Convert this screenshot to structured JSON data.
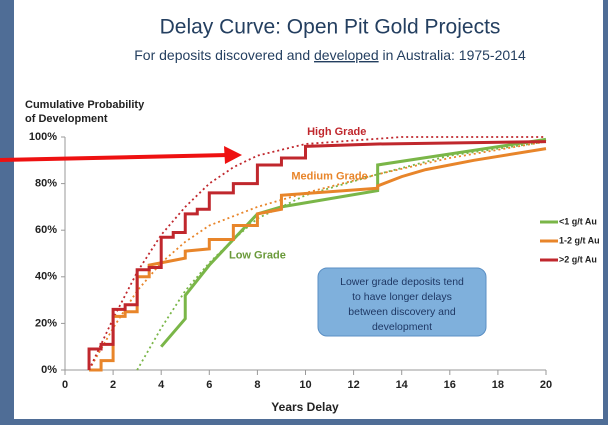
{
  "chart_data": {
    "type": "line",
    "title": "Delay Curve: Open Pit Gold Projects",
    "subtitle": {
      "before": "For deposits discovered and ",
      "underlined": "developed",
      "after": " in Australia: 1975-2014"
    },
    "y_label_lines": [
      "Cumulative Probability",
      "of Development"
    ],
    "x_label": "Years Delay",
    "xlim": [
      0,
      20
    ],
    "xticks": [
      0,
      2,
      4,
      6,
      8,
      10,
      12,
      14,
      16,
      18,
      20
    ],
    "ylim": [
      0,
      100
    ],
    "yticks": [
      {
        "value": 0,
        "label": "0%"
      },
      {
        "value": 20,
        "label": "20%"
      },
      {
        "value": 40,
        "label": "40%"
      },
      {
        "value": 60,
        "label": "60%"
      },
      {
        "value": 80,
        "label": "80%"
      },
      {
        "value": 100,
        "label": "100%"
      }
    ],
    "legend": "right",
    "series": [
      {
        "name": "<1 g/t Au",
        "color": "#7ab648",
        "x": [
          4,
          5,
          5,
          6,
          7,
          8,
          9,
          13,
          13,
          20
        ],
        "values": [
          10,
          22,
          32,
          45,
          56,
          67,
          70,
          77,
          88,
          99
        ]
      },
      {
        "name": "1-2 g/t Au",
        "color": "#e8852a",
        "x": [
          1,
          1.5,
          1.5,
          2,
          2,
          2.5,
          2.5,
          3,
          3,
          3.5,
          3.5,
          5,
          5,
          6,
          6,
          7,
          7,
          8,
          8,
          9,
          9,
          13,
          13,
          14,
          15,
          17,
          20
        ],
        "values": [
          0,
          0,
          4,
          4,
          23,
          23,
          25,
          25,
          40,
          40,
          45,
          48,
          51,
          52,
          56,
          56,
          62,
          62,
          67,
          69,
          75,
          78,
          79,
          83,
          86,
          90,
          95
        ]
      },
      {
        "name": ">2 g/t Au",
        "color": "#c0272d",
        "x": [
          1,
          1,
          1.5,
          1.5,
          2,
          2,
          2.5,
          2.5,
          3,
          3,
          3.5,
          3.5,
          4,
          4,
          4.5,
          4.5,
          5,
          5,
          5.5,
          5.5,
          6,
          6,
          7,
          7,
          8,
          8,
          9,
          9,
          10,
          10,
          13,
          20
        ],
        "values": [
          0,
          9,
          9,
          11,
          11,
          26,
          26,
          28,
          28,
          43,
          43,
          44,
          44,
          57,
          57,
          59,
          59,
          67,
          67,
          69,
          69,
          76,
          76,
          80,
          80,
          88,
          88,
          91,
          91,
          96,
          97,
          98
        ]
      },
      {
        "color": "#7ab648",
        "dash": true,
        "x": [
          3,
          4,
          5,
          6,
          7,
          8,
          10,
          13,
          16,
          20
        ],
        "values": [
          0,
          18,
          34,
          46,
          56,
          65,
          75,
          84,
          92,
          98
        ]
      },
      {
        "color": "#e8852a",
        "dash": true,
        "x": [
          1,
          2,
          3,
          4,
          5,
          6,
          8,
          10,
          13,
          16,
          20
        ],
        "values": [
          0,
          18,
          34,
          46,
          55,
          62,
          70,
          76,
          84,
          91,
          98
        ]
      },
      {
        "color": "#c0272d",
        "dash": true,
        "x": [
          1,
          2,
          3,
          4,
          5,
          6,
          7,
          8,
          10,
          14,
          20
        ],
        "values": [
          0,
          22,
          42,
          58,
          70,
          80,
          87,
          92,
          97,
          100,
          100
        ]
      }
    ],
    "annotations": [
      {
        "text": "High Grade",
        "x": 11.3,
        "y": 102,
        "color": "#c0272d"
      },
      {
        "text": "Medium Grade",
        "x": 11,
        "y": 83,
        "color": "#e8852a"
      },
      {
        "text": "Low Grade",
        "x": 8,
        "y": 49,
        "color": "#6a9a3a"
      }
    ],
    "note_lines": [
      "Lower grade deposits tend",
      "to have longer delays",
      "between discovery and",
      "development"
    ]
  }
}
